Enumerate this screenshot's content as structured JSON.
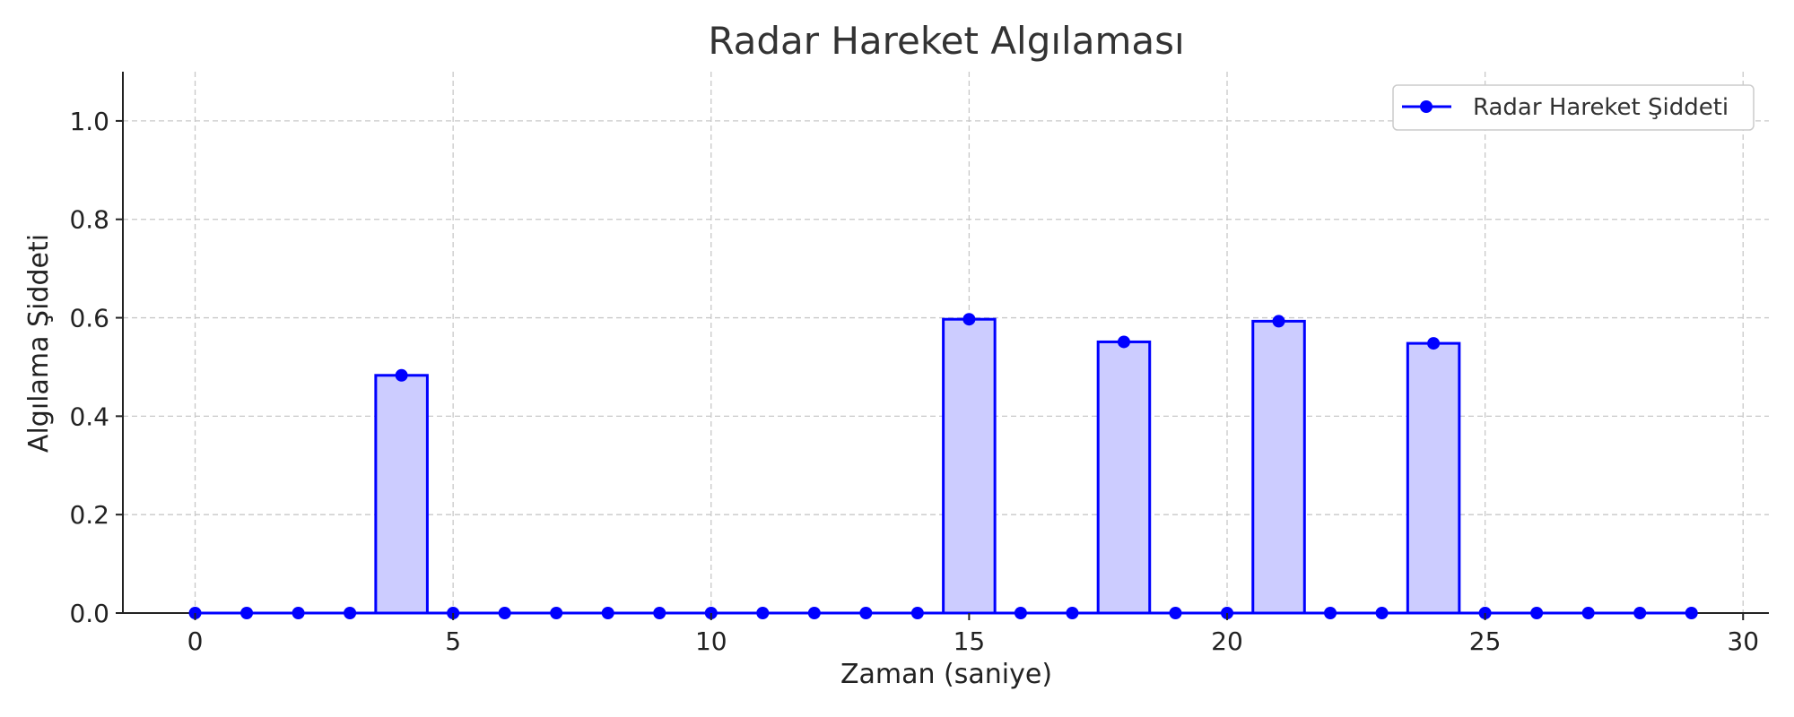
{
  "chart_data": {
    "type": "bar",
    "title": "Radar Hareket Algılaması",
    "xlabel": "Zaman (saniye)",
    "ylabel": "Algılama Şiddeti",
    "xlim": [
      -1.4,
      30.5
    ],
    "ylim": [
      0,
      1.1
    ],
    "xticks": [
      0,
      5,
      10,
      15,
      20,
      25,
      30
    ],
    "yticks": [
      0.0,
      0.2,
      0.4,
      0.6,
      0.8,
      1.0
    ],
    "xtick_labels": [
      "0",
      "5",
      "10",
      "15",
      "20",
      "25",
      "30"
    ],
    "ytick_labels": [
      "0.0",
      "0.2",
      "0.4",
      "0.6",
      "0.8",
      "1.0"
    ],
    "grid": true,
    "legend_position": "top-right",
    "series": [
      {
        "name": "Radar Hareket Şiddeti",
        "color": "#0000ff",
        "fill_color": "#ccccff",
        "x": [
          0,
          1,
          2,
          3,
          4,
          5,
          6,
          7,
          8,
          9,
          10,
          11,
          12,
          13,
          14,
          15,
          16,
          17,
          18,
          19,
          20,
          21,
          22,
          23,
          24,
          25,
          26,
          27,
          28,
          29
        ],
        "values": [
          0,
          0,
          0,
          0,
          0.483,
          0,
          0,
          0,
          0,
          0,
          0,
          0,
          0,
          0,
          0,
          0.597,
          0,
          0,
          0.551,
          0,
          0,
          0.593,
          0,
          0,
          0.548,
          0,
          0,
          0,
          0,
          0
        ]
      }
    ]
  }
}
